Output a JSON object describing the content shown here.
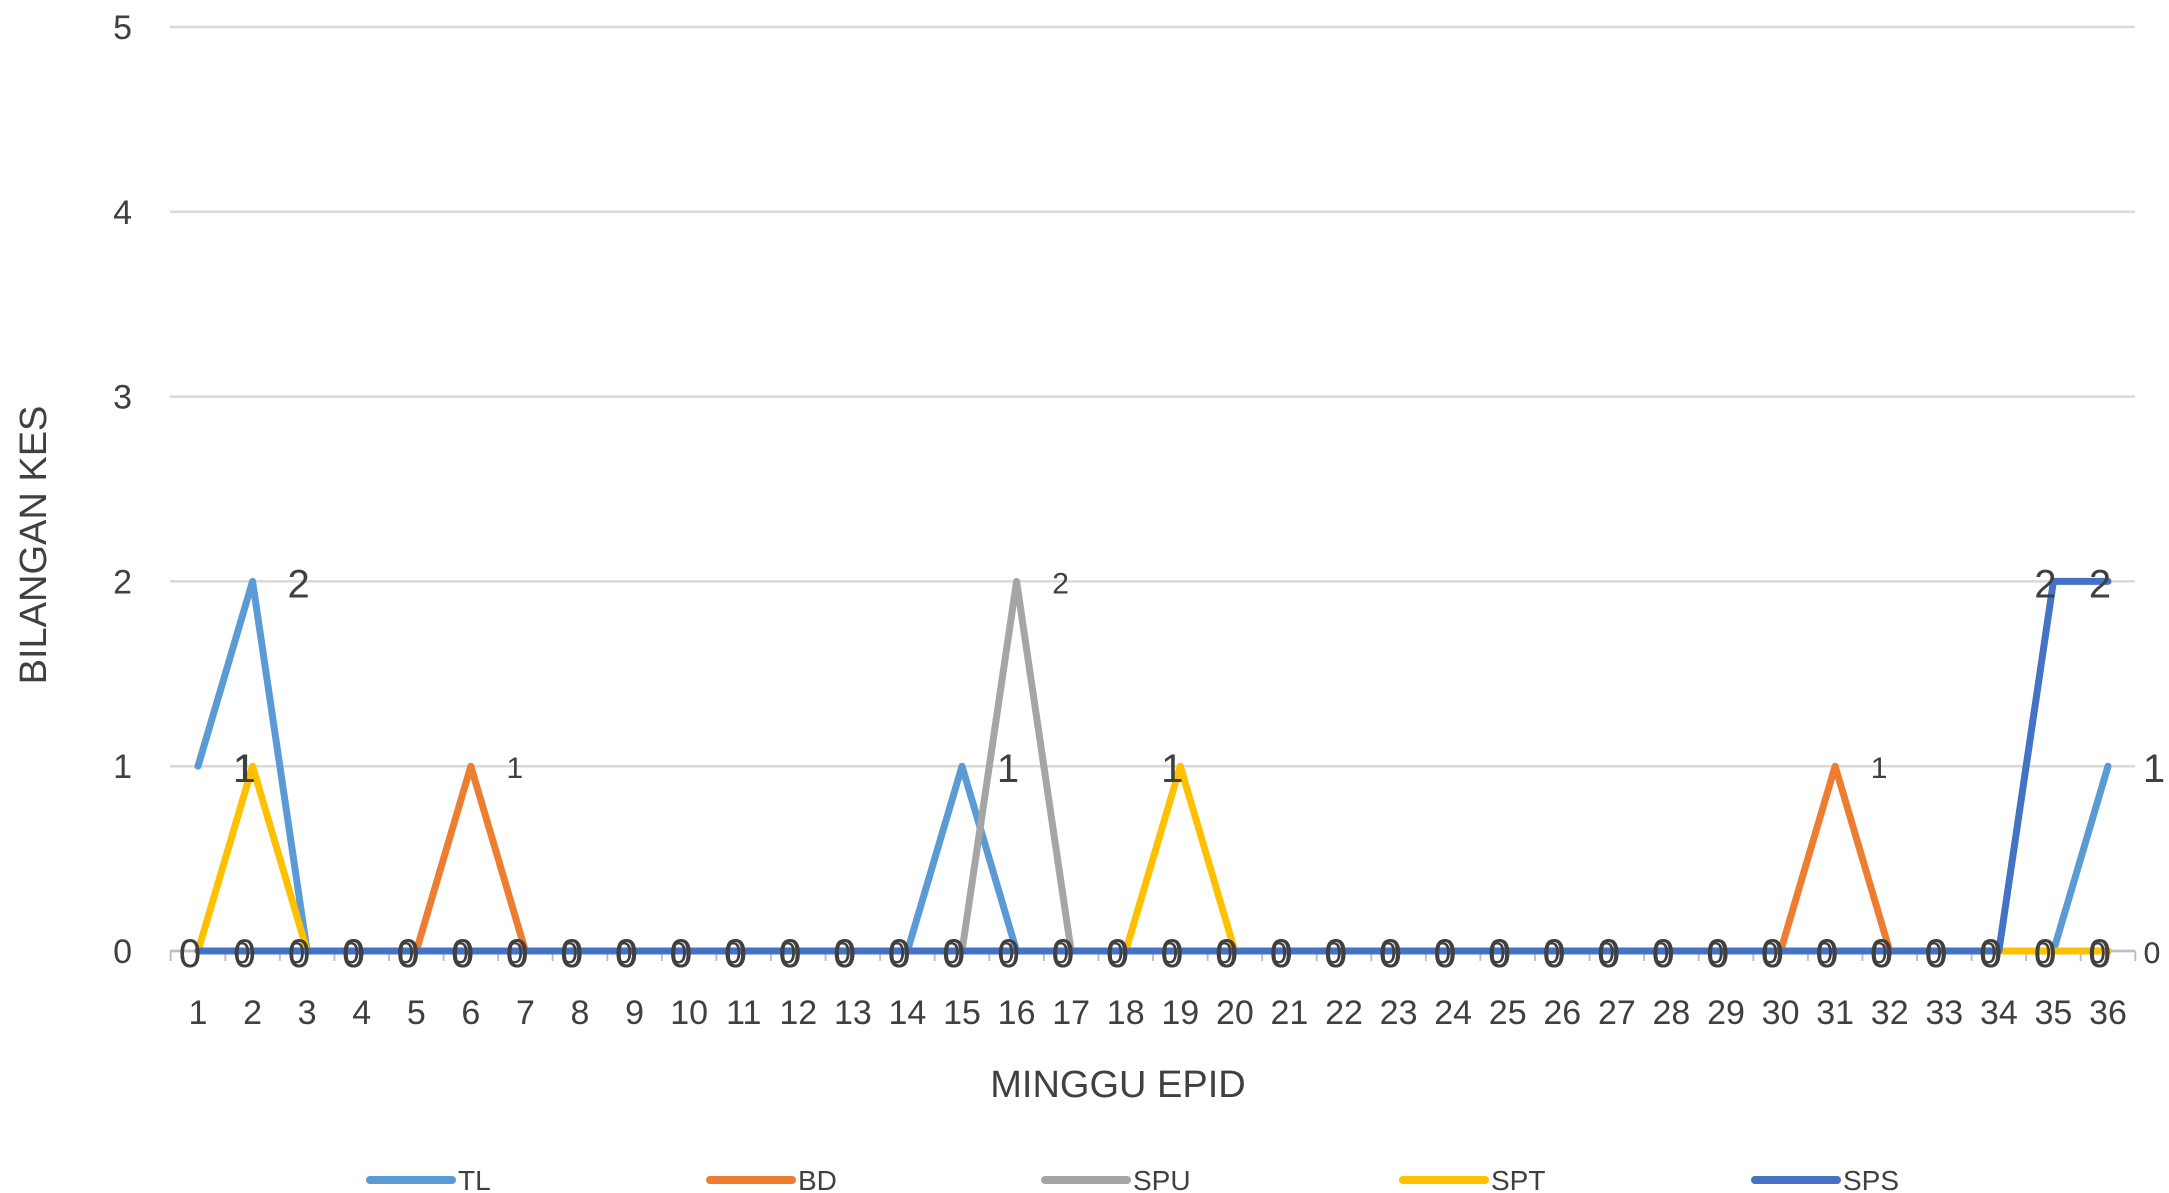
{
  "chart_data": {
    "type": "line",
    "title": "",
    "xlabel": "MINGGU EPID",
    "ylabel": "BILANGAN KES",
    "ylim": [
      0,
      5
    ],
    "yticks": [
      0,
      1,
      2,
      3,
      4,
      5
    ],
    "grid": true,
    "legend_position": "bottom",
    "categories": [
      "1",
      "2",
      "3",
      "4",
      "5",
      "6",
      "7",
      "8",
      "9",
      "10",
      "11",
      "12",
      "13",
      "14",
      "15",
      "16",
      "17",
      "18",
      "19",
      "20",
      "21",
      "22",
      "23",
      "24",
      "25",
      "26",
      "27",
      "28",
      "29",
      "30",
      "31",
      "32",
      "33",
      "34",
      "35",
      "36"
    ],
    "series": [
      {
        "name": "TL",
        "color": "#5B9BD5",
        "values": [
          1,
          2,
          0,
          0,
          0,
          0,
          0,
          0,
          0,
          0,
          0,
          0,
          0,
          0,
          1,
          0,
          0,
          0,
          0,
          0,
          0,
          0,
          0,
          0,
          0,
          0,
          0,
          0,
          0,
          0,
          0,
          0,
          0,
          0,
          0,
          1
        ]
      },
      {
        "name": "BD",
        "color": "#ED7D31",
        "values": [
          0,
          0,
          0,
          0,
          0,
          1,
          0,
          0,
          0,
          0,
          0,
          0,
          0,
          0,
          0,
          0,
          0,
          0,
          0,
          0,
          0,
          0,
          0,
          0,
          0,
          0,
          0,
          0,
          0,
          0,
          1,
          0,
          0,
          0,
          0,
          0
        ]
      },
      {
        "name": "SPU",
        "color": "#A5A5A5",
        "values": [
          0,
          0,
          0,
          0,
          0,
          0,
          0,
          0,
          0,
          0,
          0,
          0,
          0,
          0,
          0,
          2,
          0,
          0,
          0,
          0,
          0,
          0,
          0,
          0,
          0,
          0,
          0,
          0,
          0,
          0,
          0,
          0,
          0,
          0,
          0,
          0
        ]
      },
      {
        "name": "SPT",
        "color": "#FFC000",
        "values": [
          0,
          1,
          0,
          0,
          0,
          0,
          0,
          0,
          0,
          0,
          0,
          0,
          0,
          0,
          0,
          0,
          0,
          0,
          1,
          0,
          0,
          0,
          0,
          0,
          0,
          0,
          0,
          0,
          0,
          0,
          0,
          0,
          0,
          0,
          0,
          0
        ]
      },
      {
        "name": "SPS",
        "color": "#4472C4",
        "values": [
          0,
          0,
          0,
          0,
          0,
          0,
          0,
          0,
          0,
          0,
          0,
          0,
          0,
          0,
          0,
          0,
          0,
          0,
          0,
          0,
          0,
          0,
          0,
          0,
          0,
          0,
          0,
          0,
          0,
          0,
          0,
          0,
          0,
          0,
          2,
          2
        ]
      }
    ]
  }
}
